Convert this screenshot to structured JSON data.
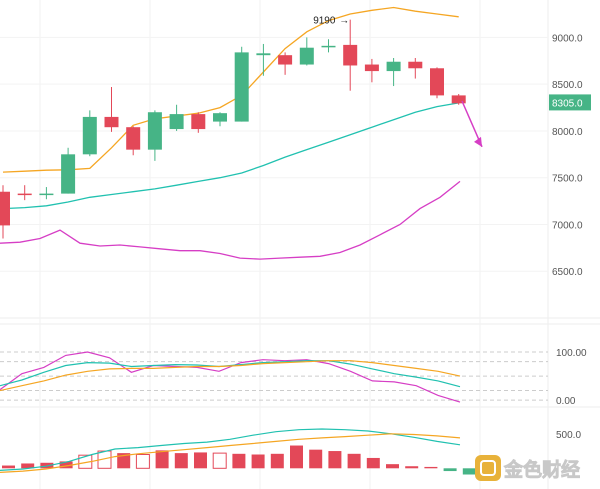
{
  "chart_data": [
    {
      "type": "candlestick",
      "panel": "price",
      "y_ticks": [
        "9000.0",
        "8500.0",
        "8000.0",
        "7500.0",
        "7000.0",
        "6500.0"
      ],
      "y_tick_values": [
        9000,
        8500,
        8000,
        7500,
        7000,
        6500
      ],
      "ylim": [
        6000,
        9400
      ],
      "current_price_label": "8305.0",
      "current_price": 8305,
      "annotation": "9190",
      "annotation_value": 9190,
      "colors": {
        "up": "#46b486",
        "down": "#e34858",
        "ma_fast": "#f5a623",
        "ma_mid": "#21c1b0",
        "ma_slow": "#d63ec5",
        "arrow": "#d63ec5",
        "price_tag": "#46b486"
      },
      "candles": [
        {
          "o": 7350,
          "h": 7420,
          "l": 6850,
          "c": 6990
        },
        {
          "o": 7330,
          "h": 7420,
          "l": 7260,
          "c": 7320
        },
        {
          "o": 7330,
          "h": 7400,
          "l": 7270,
          "c": 7330
        },
        {
          "o": 7330,
          "h": 7820,
          "l": 7330,
          "c": 7750
        },
        {
          "o": 7750,
          "h": 8220,
          "l": 7730,
          "c": 8150
        },
        {
          "o": 8150,
          "h": 8470,
          "l": 7990,
          "c": 8040
        },
        {
          "o": 8040,
          "h": 8050,
          "l": 7740,
          "c": 7800
        },
        {
          "o": 7800,
          "h": 8220,
          "l": 7680,
          "c": 8200
        },
        {
          "o": 8020,
          "h": 8280,
          "l": 8000,
          "c": 8180
        },
        {
          "o": 8180,
          "h": 8200,
          "l": 7980,
          "c": 8020
        },
        {
          "o": 8100,
          "h": 8200,
          "l": 8050,
          "c": 8190
        },
        {
          "o": 8100,
          "h": 8900,
          "l": 8100,
          "c": 8840
        },
        {
          "o": 8810,
          "h": 8930,
          "l": 8590,
          "c": 8830
        },
        {
          "o": 8810,
          "h": 8840,
          "l": 8600,
          "c": 8710
        },
        {
          "o": 8710,
          "h": 9000,
          "l": 8700,
          "c": 8890
        },
        {
          "o": 8900,
          "h": 8980,
          "l": 8840,
          "c": 8910
        },
        {
          "o": 8920,
          "h": 9190,
          "l": 8430,
          "c": 8700
        },
        {
          "o": 8710,
          "h": 8770,
          "l": 8520,
          "c": 8640
        },
        {
          "o": 8640,
          "h": 8780,
          "l": 8480,
          "c": 8740
        },
        {
          "o": 8740,
          "h": 8780,
          "l": 8560,
          "c": 8670
        },
        {
          "o": 8670,
          "h": 8680,
          "l": 8350,
          "c": 8380
        },
        {
          "o": 8380,
          "h": 8395,
          "l": 8280,
          "c": 8295
        }
      ],
      "series": [
        {
          "values": [
            7560,
            7570,
            7580,
            7585,
            7600,
            7820,
            8060,
            8130,
            8160,
            8190,
            8250,
            8380,
            8630,
            8880,
            9060,
            9180,
            9250,
            9290,
            9320,
            9280,
            9250,
            9220
          ]
        },
        {
          "values": [
            7170,
            7180,
            7200,
            7240,
            7290,
            7320,
            7350,
            7380,
            7420,
            7460,
            7500,
            7550,
            7630,
            7720,
            7800,
            7880,
            7960,
            8040,
            8120,
            8200,
            8260,
            8300
          ]
        },
        {
          "values": [
            6800,
            6810,
            6850,
            6940,
            6800,
            6770,
            6780,
            6760,
            6740,
            6720,
            6720,
            6690,
            6640,
            6630,
            6640,
            6650,
            6660,
            6700,
            6780,
            6890,
            7000,
            7170,
            7290,
            7460
          ]
        }
      ]
    },
    {
      "type": "line",
      "panel": "oscillator",
      "y_ticks": [
        "100.00",
        "0.00"
      ],
      "y_tick_values": [
        100,
        0
      ],
      "ylim": [
        -10,
        125
      ],
      "dashed_levels": [
        100,
        80,
        50,
        20,
        0
      ],
      "series": [
        {
          "color": "#d63ec5",
          "values": [
            22,
            55,
            68,
            93,
            100,
            88,
            58,
            72,
            70,
            68,
            60,
            78,
            84,
            82,
            84,
            76,
            60,
            40,
            38,
            30,
            10,
            -4
          ]
        },
        {
          "color": "#21c1b0",
          "values": [
            30,
            42,
            58,
            72,
            78,
            77,
            70,
            72,
            74,
            73,
            70,
            74,
            78,
            80,
            82,
            82,
            75,
            65,
            55,
            48,
            40,
            28
          ]
        },
        {
          "color": "#f5a623",
          "values": [
            20,
            30,
            40,
            52,
            60,
            65,
            66,
            66,
            68,
            70,
            70,
            72,
            76,
            78,
            80,
            82,
            82,
            78,
            72,
            66,
            60,
            50
          ]
        }
      ]
    },
    {
      "type": "bar",
      "panel": "macd",
      "y_ticks": [
        "500.0"
      ],
      "y_tick_values": [
        500
      ],
      "ylim": [
        -300,
        700
      ],
      "bars": [
        40,
        70,
        80,
        100,
        190,
        250,
        220,
        200,
        260,
        220,
        230,
        220,
        210,
        200,
        210,
        330,
        270,
        250,
        210,
        150,
        60,
        30,
        20,
        -40,
        -90
      ],
      "series": [
        {
          "color": "#21c1b0",
          "values": [
            -30,
            -10,
            30,
            100,
            200,
            280,
            300,
            330,
            360,
            380,
            420,
            480,
            530,
            560,
            570,
            560,
            540,
            500,
            450,
            390,
            340
          ]
        },
        {
          "color": "#f5a623",
          "values": [
            -60,
            -40,
            -10,
            40,
            100,
            170,
            210,
            240,
            270,
            300,
            330,
            360,
            390,
            420,
            440,
            460,
            480,
            500,
            490,
            470,
            440
          ]
        }
      ]
    }
  ],
  "watermark": {
    "text": "金色财经",
    "icon": "golden-coin-logo-icon"
  }
}
